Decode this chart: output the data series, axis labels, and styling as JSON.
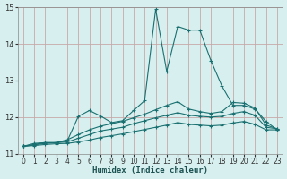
{
  "xlabel": "Humidex (Indice chaleur)",
  "ylabel": "",
  "xlim": [
    -0.5,
    23.5
  ],
  "ylim": [
    11,
    15
  ],
  "yticks": [
    11,
    12,
    13,
    14,
    15
  ],
  "xticks": [
    0,
    1,
    2,
    3,
    4,
    5,
    6,
    7,
    8,
    9,
    10,
    11,
    12,
    13,
    14,
    15,
    16,
    17,
    18,
    19,
    20,
    21,
    22,
    23
  ],
  "bg_color": "#d8efef",
  "grid_color": "#c8a8a8",
  "line_color": "#1a7070",
  "lines": [
    {
      "x": [
        0,
        1,
        2,
        3,
        4,
        5,
        6,
        7,
        8,
        9,
        10,
        11,
        12,
        13,
        14,
        15,
        16,
        17,
        18,
        19,
        20,
        21,
        22,
        23
      ],
      "y": [
        11.2,
        11.28,
        11.3,
        11.3,
        11.35,
        12.02,
        12.18,
        12.03,
        11.85,
        11.9,
        12.18,
        12.45,
        14.95,
        13.25,
        14.48,
        14.38,
        14.38,
        13.55,
        12.85,
        12.32,
        12.32,
        12.22,
        11.88,
        11.65
      ]
    },
    {
      "x": [
        0,
        1,
        2,
        3,
        4,
        5,
        6,
        7,
        8,
        9,
        10,
        11,
        12,
        13,
        14,
        15,
        16,
        17,
        18,
        19,
        20,
        21,
        22,
        23
      ],
      "y": [
        11.2,
        11.25,
        11.3,
        11.3,
        11.38,
        11.52,
        11.65,
        11.75,
        11.82,
        11.88,
        11.98,
        12.08,
        12.2,
        12.32,
        12.42,
        12.22,
        12.15,
        12.1,
        12.15,
        12.4,
        12.38,
        12.25,
        11.78,
        11.68
      ]
    },
    {
      "x": [
        0,
        1,
        2,
        3,
        4,
        5,
        6,
        7,
        8,
        9,
        10,
        11,
        12,
        13,
        14,
        15,
        16,
        17,
        18,
        19,
        20,
        21,
        22,
        23
      ],
      "y": [
        11.2,
        11.24,
        11.28,
        11.3,
        11.32,
        11.42,
        11.52,
        11.62,
        11.67,
        11.72,
        11.82,
        11.9,
        11.98,
        12.05,
        12.12,
        12.05,
        12.02,
        12.0,
        12.02,
        12.1,
        12.15,
        12.05,
        11.72,
        11.68
      ]
    },
    {
      "x": [
        0,
        1,
        2,
        3,
        4,
        5,
        6,
        7,
        8,
        9,
        10,
        11,
        12,
        13,
        14,
        15,
        16,
        17,
        18,
        19,
        20,
        21,
        22,
        23
      ],
      "y": [
        11.2,
        11.22,
        11.25,
        11.27,
        11.28,
        11.32,
        11.37,
        11.44,
        11.49,
        11.54,
        11.6,
        11.66,
        11.72,
        11.78,
        11.85,
        11.8,
        11.78,
        11.76,
        11.78,
        11.84,
        11.88,
        11.8,
        11.65,
        11.65
      ]
    }
  ]
}
